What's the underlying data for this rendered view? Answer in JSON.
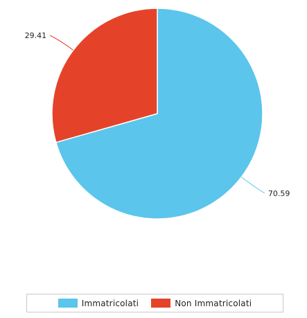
{
  "chart_data": {
    "type": "pie",
    "categories": [
      "Immatricolati",
      "Non Immatricolati"
    ],
    "values": [
      70.59,
      29.41
    ],
    "colors": [
      "#5bc5ec",
      "#e4432a"
    ],
    "data_labels": [
      "70.59",
      "29.41"
    ],
    "start_angle_deg": 0,
    "direction": "clockwise",
    "legend": {
      "placement": "bottom-center"
    }
  }
}
